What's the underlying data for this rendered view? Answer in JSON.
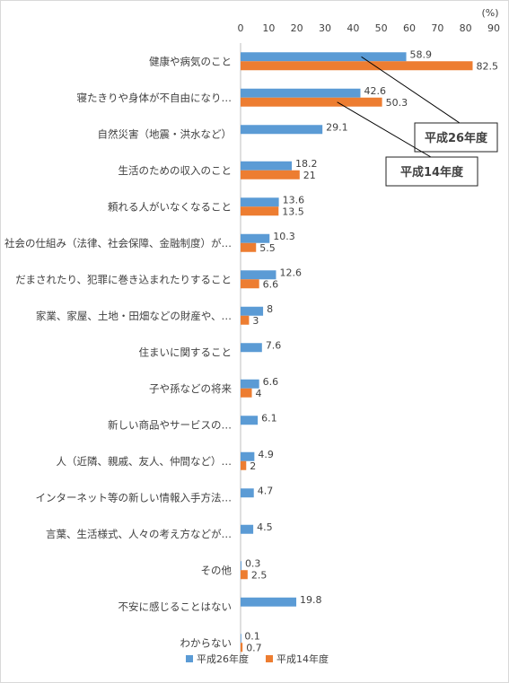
{
  "chart_data": {
    "type": "bar",
    "orientation": "horizontal",
    "unit": "(%)",
    "xlim": [
      0,
      90
    ],
    "ticks": [
      0,
      10,
      20,
      30,
      40,
      50,
      60,
      70,
      80,
      90
    ],
    "grid": false,
    "legend_position": "bottom",
    "categories": [
      "健康や病気のこと",
      "寝たきりや身体が不自由になり…",
      "自然災害（地震・洪水など）",
      "生活のための収入のこと",
      "頼れる人がいなくなること",
      "社会の仕組み（法律、社会保障、金融制度）が…",
      "だまされたり、犯罪に巻き込まれたりすること",
      "家業、家屋、土地・田畑などの財産や、…",
      "住まいに関すること",
      "子や孫などの将来",
      "新しい商品やサービスの…",
      "人（近隣、親戚、友人、仲間など）…",
      "インターネット等の新しい情報入手方法…",
      "言葉、生活様式、人々の考え方などが…",
      "その他",
      "不安に感じることはない",
      "わからない"
    ],
    "series": [
      {
        "name": "平成26年度",
        "color": "#5b9bd5",
        "values": [
          58.9,
          42.6,
          29.1,
          18.2,
          13.6,
          10.3,
          12.6,
          8,
          7.6,
          6.6,
          6.1,
          4.9,
          4.7,
          4.5,
          0.3,
          19.8,
          0.1
        ],
        "labels": [
          "58.9",
          "42.6",
          "29.1",
          "18.2",
          "13.6",
          "10.3",
          "12.6",
          "8",
          "7.6",
          "6.6",
          "6.1",
          "4.9",
          "4.7",
          "4.5",
          "0.3",
          "19.8",
          "0.1"
        ]
      },
      {
        "name": "平成14年度",
        "color": "#ed7d31",
        "values": [
          82.5,
          50.3,
          null,
          21,
          13.5,
          5.5,
          6.6,
          3,
          null,
          4,
          null,
          2,
          null,
          null,
          2.5,
          null,
          0.7
        ],
        "labels": [
          "82.5",
          "50.3",
          null,
          "21",
          "13.5",
          "5.5",
          "6.6",
          "3",
          null,
          "4",
          null,
          "2",
          null,
          null,
          "2.5",
          null,
          "0.7"
        ]
      }
    ],
    "callouts": [
      {
        "text": "平成26年度",
        "series": 0,
        "category": 0
      },
      {
        "text": "平成14年度",
        "series": 1,
        "category": 1
      }
    ]
  }
}
